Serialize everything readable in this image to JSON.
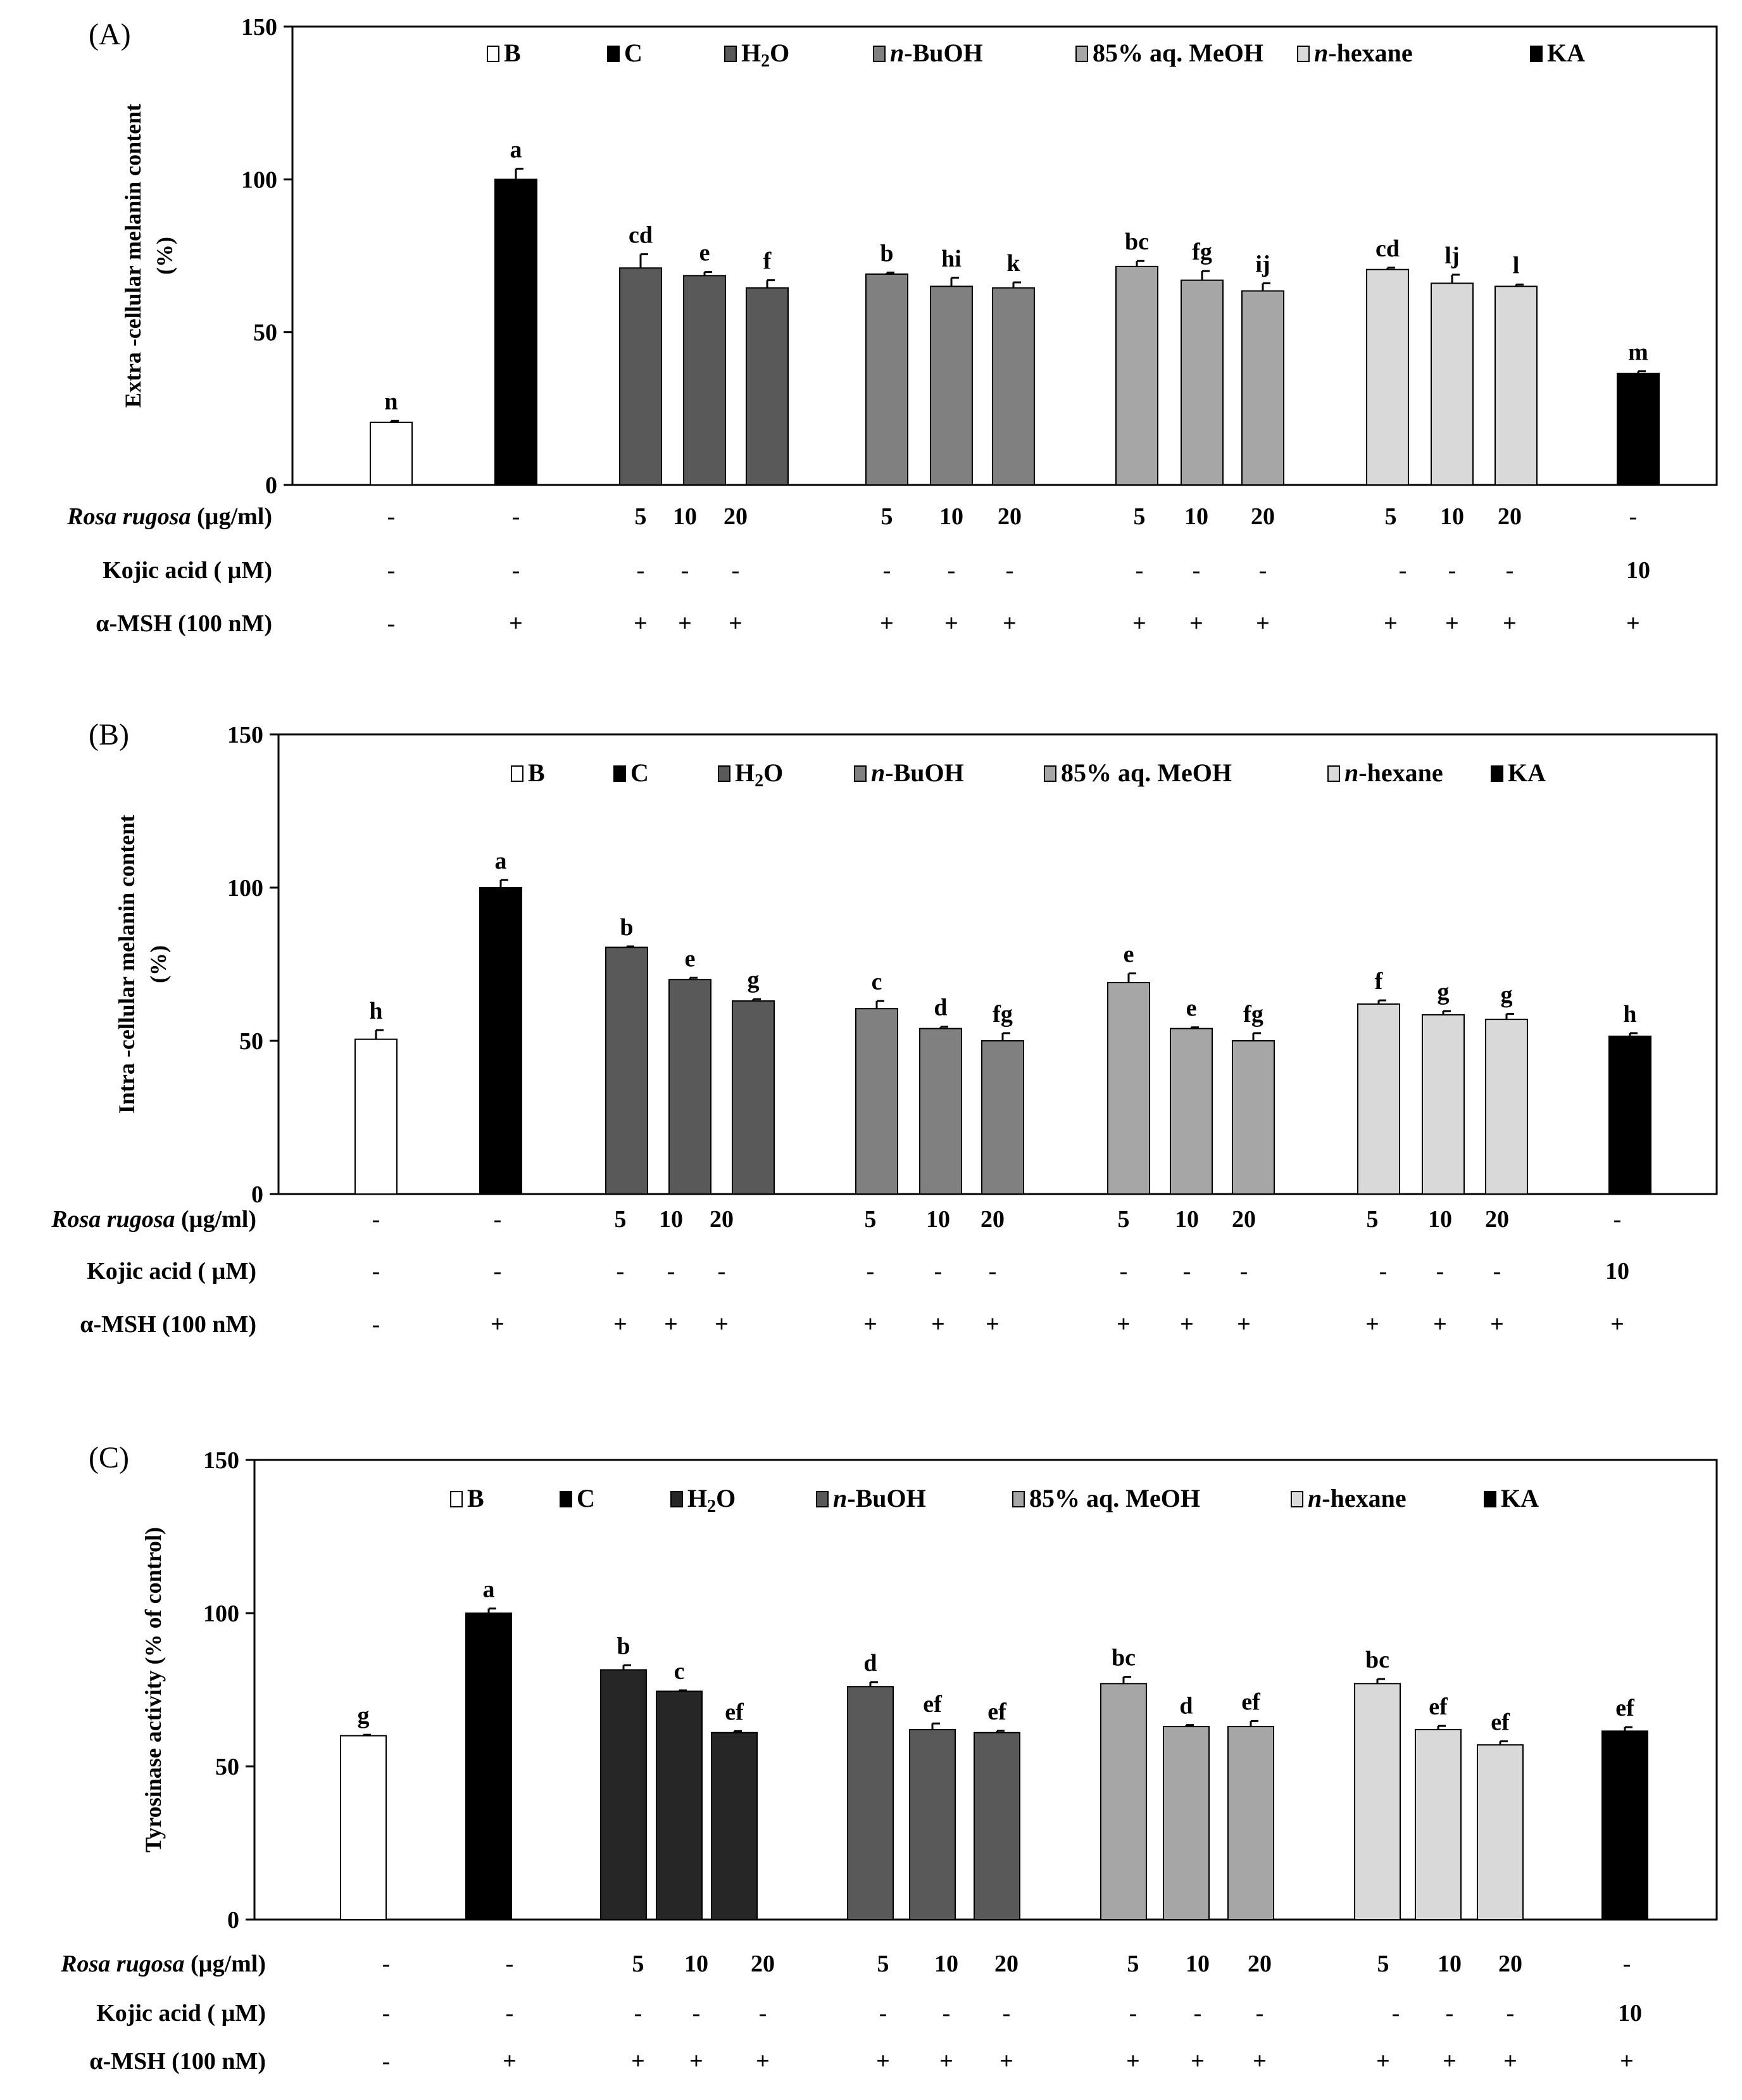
{
  "legend_labels": [
    "B",
    "C",
    "H₂O",
    "n-BuOH",
    "85% aq. MeOH",
    "n-hexane",
    "KA"
  ],
  "row_labels": {
    "rosa_name": "Rosa rugosa",
    "rosa_unit": "(µg/ml)",
    "kojic": "Kojic acid ( µM)",
    "msh": "α-MSH (100 nM)"
  },
  "row_values": {
    "rosa": [
      "-",
      "-",
      "5",
      "10",
      "20",
      "5",
      "10",
      "20",
      "5",
      "10",
      "20",
      "5",
      "10",
      "20",
      "-"
    ],
    "kojic": [
      "-",
      "-",
      "-",
      "-",
      "-",
      "-",
      "-",
      "-",
      "-",
      "-",
      "-",
      "-",
      "-",
      "-",
      "10"
    ],
    "msh": [
      "-",
      "+",
      "+",
      "+",
      "+",
      "+",
      "+",
      "+",
      "+",
      "+",
      "+",
      "+",
      "+",
      "+",
      "+"
    ]
  },
  "colors": {
    "B": "#ffffff",
    "C": "#000000",
    "KA": "#000000",
    "panelA": [
      "#595959",
      "#808080",
      "#a6a6a6",
      "#d9d9d9"
    ],
    "panelB": [
      "#595959",
      "#808080",
      "#a6a6a6",
      "#d9d9d9"
    ],
    "panelC": [
      "#262626",
      "#595959",
      "#a6a6a6",
      "#d9d9d9"
    ]
  },
  "chart_data": [
    {
      "type": "bar",
      "panel": "(A)",
      "ylabel_line1": "Extra -cellular melanin content",
      "ylabel_line2": "(%)",
      "ylim": [
        0,
        150
      ],
      "yticks": [
        0,
        50,
        100,
        150
      ],
      "categories": [
        "B",
        "C",
        "H2O 5",
        "H2O 10",
        "H2O 20",
        "n-BuOH 5",
        "n-BuOH 10",
        "n-BuOH 20",
        "85% aq. MeOH 5",
        "85% aq. MeOH 10",
        "85% aq. MeOH 20",
        "n-hexane 5",
        "n-hexane 10",
        "n-hexane 20",
        "KA"
      ],
      "values": [
        20.5,
        100,
        71,
        68.5,
        64.5,
        69,
        65,
        64.5,
        71.5,
        67,
        63.5,
        70.5,
        66,
        65,
        36.5
      ],
      "errors": [
        0.5,
        3.5,
        4.5,
        1.2,
        2.5,
        0.5,
        2.8,
        1.8,
        1.8,
        3,
        2.5,
        0.6,
        2.8,
        0.6,
        0.7
      ],
      "letters": [
        "n",
        "a",
        "cd",
        "e",
        "f",
        "b",
        "hi",
        "k",
        "bc",
        "fg",
        "ij",
        "cd",
        "lj",
        "l",
        "m"
      ]
    },
    {
      "type": "bar",
      "panel": "(B)",
      "ylabel_line1": "Intra -cellular melanin content",
      "ylabel_line2": "(%)",
      "ylim": [
        0,
        150
      ],
      "yticks": [
        0,
        50,
        100,
        150
      ],
      "categories": [
        "B",
        "C",
        "H2O 5",
        "H2O 10",
        "H2O 20",
        "n-BuOH 5",
        "n-BuOH 10",
        "n-BuOH 20",
        "85% aq. MeOH 5",
        "85% aq. MeOH 10",
        "85% aq. MeOH 20",
        "n-hexane 5",
        "n-hexane 10",
        "n-hexane 20",
        "KA"
      ],
      "values": [
        50.5,
        100,
        80.5,
        70,
        63,
        60.5,
        54,
        50,
        69,
        54,
        50,
        62,
        58.5,
        57,
        51.5
      ],
      "errors": [
        3,
        2.5,
        0.3,
        0.6,
        0.6,
        2.5,
        0.6,
        2.5,
        3,
        0.4,
        2.5,
        1.2,
        1.2,
        1.8,
        1
      ],
      "letters": [
        "h",
        "a",
        "b",
        "e",
        "g",
        "c",
        "d",
        "fg",
        "e",
        "e",
        "fg",
        "f",
        "g",
        "g",
        "h"
      ]
    },
    {
      "type": "bar",
      "panel": "(C)",
      "ylabel_line1": "Tyrosinase activity (% of control)",
      "ylim": [
        0,
        150
      ],
      "yticks": [
        0,
        50,
        100,
        150
      ],
      "categories": [
        "B",
        "C",
        "H2O 5",
        "H2O 10",
        "H2O 20",
        "n-BuOH 5",
        "n-BuOH 10",
        "n-BuOH 20",
        "85% aq. MeOH 5",
        "85% aq. MeOH 10",
        "85% aq. MeOH 20",
        "n-hexane 5",
        "n-hexane 10",
        "n-hexane 20",
        "KA"
      ],
      "values": [
        60,
        100,
        81.5,
        74.5,
        61,
        76,
        62,
        61,
        77,
        63,
        63,
        77,
        62,
        57,
        61.5
      ],
      "errors": [
        0.3,
        1.5,
        1.5,
        0.3,
        0.5,
        1.5,
        2,
        0.6,
        2.2,
        0.5,
        1.8,
        1.5,
        1.2,
        1.2,
        1.3
      ],
      "letters": [
        "g",
        "a",
        "b",
        "c",
        "ef",
        "d",
        "ef",
        "ef",
        "bc",
        "d",
        "ef",
        "bc",
        "ef",
        "ef",
        "ef"
      ]
    }
  ]
}
